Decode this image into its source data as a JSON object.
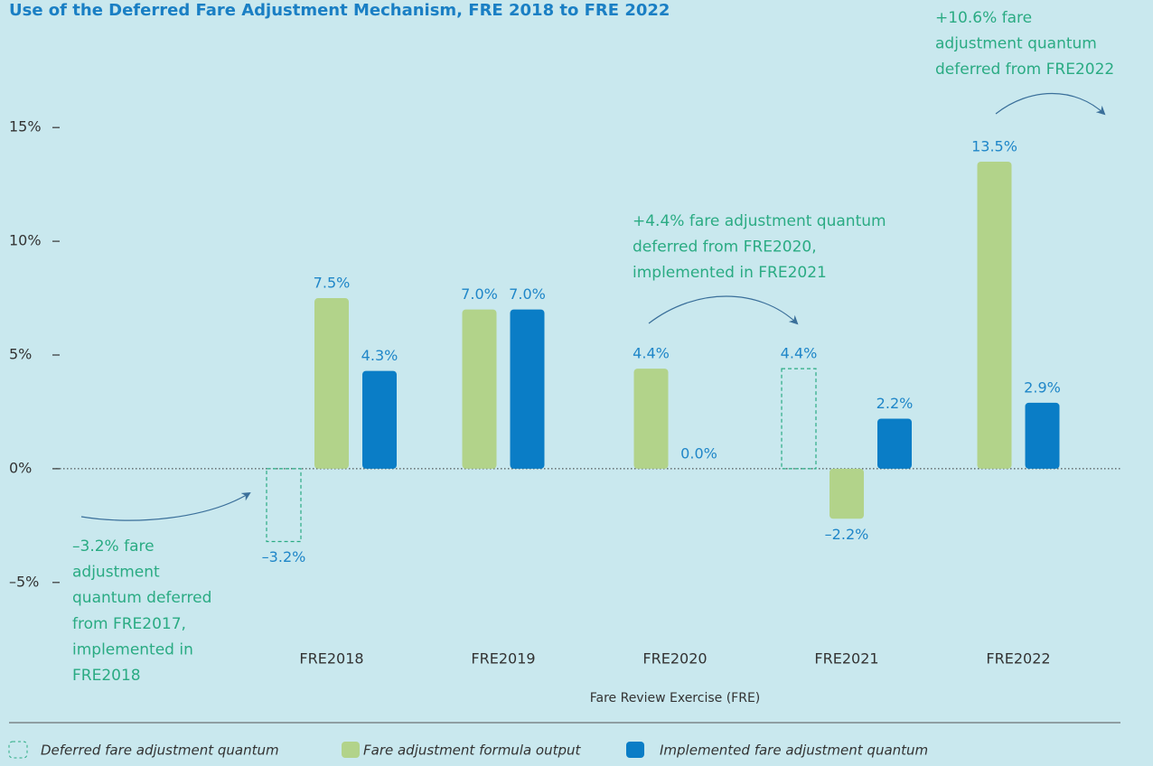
{
  "chart_data": {
    "type": "bar",
    "title": "Use of the Deferred Fare Adjustment Mechanism, FRE 2018 to FRE 2022",
    "x_label": "Fare Review Exercise (FRE)",
    "categories": [
      "FRE2018",
      "FRE2019",
      "FRE2020",
      "FRE2021",
      "FRE2022"
    ],
    "ylim": [
      -6,
      16
    ],
    "yticks": [
      {
        "value": 15,
        "label": "15%"
      },
      {
        "value": 10,
        "label": "10%"
      },
      {
        "value": 5,
        "label": "5%"
      },
      {
        "value": 0,
        "label": "0%"
      },
      {
        "value": -5,
        "label": "–5%"
      }
    ],
    "series": [
      {
        "name": "Deferred fare adjustment quantum",
        "color": "#2aab83",
        "style": "dashed",
        "values": [
          -3.2,
          null,
          null,
          4.4,
          null
        ],
        "value_labels": [
          "–3.2%",
          null,
          null,
          "4.4%",
          null
        ]
      },
      {
        "name": "Fare adjustment formula output",
        "color": "#b2d38a",
        "values": [
          7.5,
          7.0,
          4.4,
          -2.2,
          13.5
        ],
        "value_labels": [
          "7.5%",
          "7.0%",
          "4.4%",
          "–2.2%",
          "13.5%"
        ]
      },
      {
        "name": "Implemented fare adjustment quantum",
        "color": "#0a7dc6",
        "values": [
          4.3,
          7.0,
          0.0,
          2.2,
          2.9
        ],
        "value_labels": [
          "4.3%",
          "7.0%",
          "0.0%",
          "2.2%",
          "2.9%"
        ]
      }
    ],
    "annotations": [
      {
        "lines": [
          "–3.2% fare",
          "adjustment",
          "quantum deferred",
          "from FRE2017,",
          "implemented in",
          "FRE2018"
        ]
      },
      {
        "lines": [
          "+4.4% fare adjustment quantum",
          "deferred from FRE2020,",
          "implemented in FRE2021"
        ]
      },
      {
        "lines": [
          "+10.6% fare",
          "adjustment quantum",
          "deferred from FRE2022"
        ]
      }
    ]
  }
}
